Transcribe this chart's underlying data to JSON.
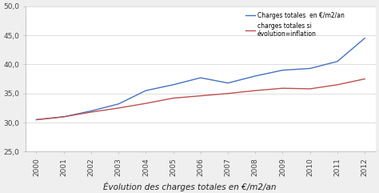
{
  "years": [
    2000,
    2001,
    2002,
    2003,
    2004,
    2005,
    2006,
    2007,
    2008,
    2009,
    2010,
    2011,
    2012
  ],
  "charges_totales": [
    30.5,
    31.0,
    32.0,
    33.2,
    35.5,
    36.5,
    37.7,
    36.8,
    38.0,
    39.0,
    39.3,
    40.5,
    44.5
  ],
  "charges_inflation": [
    30.5,
    31.0,
    31.8,
    32.5,
    33.3,
    34.2,
    34.6,
    35.0,
    35.5,
    35.9,
    35.8,
    36.5,
    37.5
  ],
  "line1_color": "#4472C4",
  "line2_color": "#C0504D",
  "legend1": "Charges totales  en €/m2/an",
  "legend2": "charges totales si \névolution=inflation",
  "xlabel": "Évolution des charges totales en €/m2/an",
  "ylim": [
    25.0,
    50.0
  ],
  "yticks": [
    25.0,
    30.0,
    35.0,
    40.0,
    45.0,
    50.0
  ],
  "ytick_labels": [
    "25,0",
    "30,0",
    "35,0",
    "40,0",
    "45,0",
    "50,0"
  ],
  "bg_color": "#EFEFEF",
  "plot_bg": "#FFFFFF",
  "grid_color": "#D8D8D8"
}
